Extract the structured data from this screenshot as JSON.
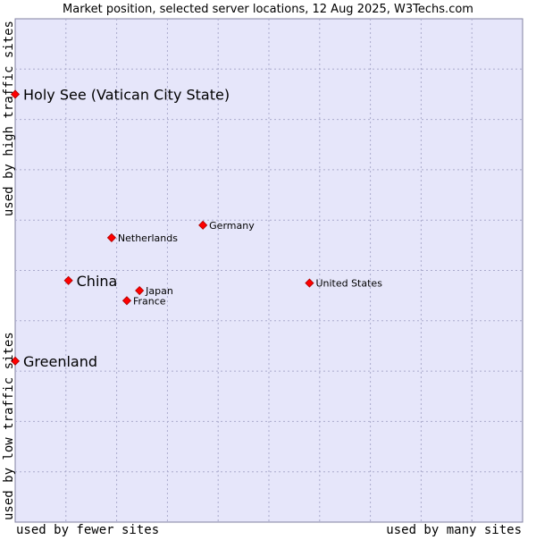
{
  "chart_data": {
    "type": "scatter",
    "title": "Market position, selected server locations, 12 Aug 2025, W3Techs.com",
    "xlabel_low": "used by fewer sites",
    "xlabel_high": "used by many sites",
    "ylabel_low": "used by low traffic sites",
    "ylabel_high": "used by high traffic sites",
    "xlim": [
      0,
      100
    ],
    "ylim": [
      0,
      100
    ],
    "grid": true,
    "points": [
      {
        "label": "Holy See (Vatican City State)",
        "x": 0.0,
        "y": 85.0,
        "emphasis": true
      },
      {
        "label": "Germany",
        "x": 37.0,
        "y": 59.0,
        "emphasis": false
      },
      {
        "label": "Netherlands",
        "x": 19.0,
        "y": 56.5,
        "emphasis": false
      },
      {
        "label": "China",
        "x": 10.5,
        "y": 48.0,
        "emphasis": true
      },
      {
        "label": "Japan",
        "x": 24.5,
        "y": 46.0,
        "emphasis": false
      },
      {
        "label": "France",
        "x": 22.0,
        "y": 44.0,
        "emphasis": false
      },
      {
        "label": "United States",
        "x": 58.0,
        "y": 47.5,
        "emphasis": false
      },
      {
        "label": "Greenland",
        "x": 0.0,
        "y": 32.0,
        "emphasis": true
      }
    ]
  },
  "colors": {
    "plot_bg": "#e6e6fa",
    "grid": "#aaaacc",
    "border": "#8080a0",
    "marker": "#ff0000",
    "marker_edge": "#aa0000",
    "text": "#000000"
  }
}
